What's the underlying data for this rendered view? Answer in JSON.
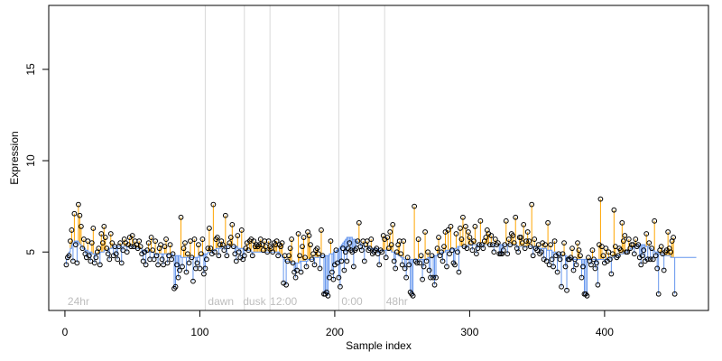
{
  "chart_data": {
    "type": "scatter",
    "xlabel": "Sample index",
    "ylabel": "Expression",
    "xlim": [
      -12,
      477
    ],
    "ylim": [
      1.8,
      18.5
    ],
    "x_ticks": [
      0,
      100,
      200,
      300,
      400
    ],
    "y_ticks": [
      5,
      10,
      15
    ],
    "baseline_line": {
      "color": "#6495ed",
      "description": "running baseline drawn as step line"
    },
    "stems": {
      "above_color": "#ffa500",
      "below_color": "#6495ed"
    },
    "markers": {
      "shape": "open-circle",
      "color": "#000000"
    },
    "annotation_lines": [
      104,
      133,
      152,
      203,
      237
    ],
    "annotations": [
      {
        "x": 2,
        "label": "24hr"
      },
      {
        "x": 106,
        "label": "dawn"
      },
      {
        "x": 132,
        "label": "dusk"
      },
      {
        "x": 152,
        "label": "12:00"
      },
      {
        "x": 205,
        "label": "0:00"
      },
      {
        "x": 238,
        "label": "48hr"
      }
    ],
    "baseline": [
      4.6,
      4.8,
      5.0,
      5.2,
      5.4,
      5.5,
      5.6,
      5.6,
      5.6,
      5.5,
      5.4,
      5.3,
      5.2,
      5.2,
      5.1,
      5.1,
      5.0,
      5.0,
      5.0,
      4.9,
      4.9,
      4.9,
      4.9,
      4.9,
      4.9,
      5.0,
      5.0,
      5.0,
      5.1,
      5.1,
      5.1,
      5.2,
      5.2,
      5.2,
      5.3,
      5.3,
      5.3,
      5.3,
      5.3,
      5.3,
      5.3,
      5.3,
      5.3,
      5.3,
      5.3,
      5.3,
      5.3,
      5.3,
      5.3,
      5.3,
      5.3,
      5.2,
      5.2,
      5.2,
      5.2,
      5.2,
      5.1,
      5.1,
      5.1,
      5.1,
      5.0,
      5.0,
      5.0,
      5.0,
      5.0,
      4.9,
      4.9,
      4.9,
      4.9,
      4.9,
      4.9,
      4.9,
      4.9,
      4.9,
      4.9,
      4.9,
      4.9,
      4.9,
      4.9,
      4.8,
      4.8,
      4.8,
      4.8,
      4.8,
      4.8,
      4.7,
      4.7,
      4.7,
      4.7,
      4.7,
      4.7,
      4.7,
      4.7,
      4.7,
      4.7,
      4.7,
      4.7,
      4.7,
      4.8,
      4.8,
      4.8,
      4.8,
      4.9,
      4.9,
      4.9,
      5.0,
      5.0,
      5.0,
      5.1,
      5.1,
      5.1,
      5.2,
      5.2,
      5.2,
      5.2,
      5.3,
      5.3,
      5.3,
      5.3,
      5.3,
      5.3,
      5.3,
      5.3,
      5.3,
      5.3,
      5.3,
      5.3,
      5.2,
      5.2,
      5.2,
      5.2,
      5.2,
      5.1,
      5.1,
      5.1,
      5.1,
      5.1,
      5.0,
      5.0,
      5.0,
      5.0,
      5.0,
      5.0,
      5.0,
      5.0,
      5.0,
      5.0,
      5.0,
      5.0,
      5.0,
      5.0,
      5.0,
      5.0,
      5.0,
      5.0,
      5.0,
      5.0,
      5.0,
      4.9,
      4.8,
      4.7,
      4.6,
      4.5,
      4.5,
      4.5,
      4.5,
      4.4,
      4.4,
      4.4,
      4.4,
      4.4,
      4.4,
      4.4,
      4.5,
      4.5,
      4.5,
      4.5,
      4.5,
      4.5,
      4.6,
      4.6,
      4.6,
      4.6,
      4.7,
      4.7,
      4.7,
      4.7,
      4.7,
      4.7,
      4.8,
      4.8,
      4.8,
      4.8,
      4.8,
      4.8,
      4.9,
      4.9,
      4.9,
      5.0,
      5.0,
      5.1,
      5.1,
      5.2,
      5.3,
      5.4,
      5.5,
      5.6,
      5.7,
      5.8,
      5.8,
      5.8,
      5.8,
      5.7,
      5.7,
      5.6,
      5.6,
      5.5,
      5.5,
      5.4,
      5.4,
      5.4,
      5.3,
      5.3,
      5.3,
      5.3,
      5.2,
      5.2,
      5.2,
      5.2,
      5.2,
      5.2,
      5.1,
      5.1,
      5.1,
      5.1,
      5.1,
      5.1,
      5.1,
      5.1,
      5.1,
      5.1,
      5.0,
      5.0,
      5.0,
      4.9,
      4.9,
      4.8,
      4.8,
      4.7,
      4.7,
      4.6,
      4.6,
      4.6,
      4.6,
      4.6,
      4.6,
      4.6,
      4.6,
      4.6,
      4.6,
      4.6,
      4.6,
      4.6,
      4.6,
      4.6,
      4.6,
      4.6,
      4.6,
      4.7,
      4.7,
      4.7,
      4.7,
      4.8,
      4.8,
      4.8,
      4.9,
      4.9,
      4.9,
      5.0,
      5.0,
      5.0,
      5.1,
      5.1,
      5.1,
      5.1,
      5.2,
      5.2,
      5.2,
      5.2,
      5.2,
      5.3,
      5.3,
      5.3,
      5.3,
      5.3,
      5.3,
      5.3,
      5.3,
      5.4,
      5.4,
      5.4,
      5.4,
      5.4,
      5.4,
      5.4,
      5.4,
      5.4,
      5.4,
      5.4,
      5.4,
      5.4,
      5.4,
      5.4,
      5.4,
      5.4,
      5.4,
      5.4,
      5.4,
      5.4,
      5.4,
      5.4,
      5.4,
      5.4,
      5.4,
      5.4,
      5.4,
      5.4,
      5.4,
      5.4,
      5.4,
      5.4,
      5.4,
      5.4,
      5.4,
      5.3,
      5.3,
      5.3,
      5.3,
      5.3,
      5.3,
      5.3,
      5.3,
      5.3,
      5.3,
      5.3,
      5.3,
      5.3,
      5.3,
      5.3,
      5.3,
      5.2,
      5.2,
      5.2,
      5.2,
      5.2,
      5.2,
      5.1,
      5.1,
      5.1,
      5.1,
      5.0,
      5.0,
      5.0,
      4.9,
      4.9,
      4.9,
      4.9,
      4.8,
      4.8,
      4.8,
      4.8,
      4.7,
      4.7,
      4.7,
      4.7,
      4.7,
      4.6,
      4.6,
      4.6,
      4.6,
      4.6,
      4.6,
      4.6,
      4.6,
      4.6,
      4.6,
      4.6,
      4.6,
      4.6,
      4.6,
      4.6,
      4.6,
      4.6,
      4.6,
      4.6,
      4.6,
      4.6,
      4.6,
      4.6,
      4.6,
      4.6,
      4.7,
      4.7,
      4.7,
      4.7,
      4.7,
      4.8,
      4.8,
      4.8,
      4.8,
      4.9,
      4.9,
      4.9,
      5.0,
      5.0,
      5.0,
      5.1,
      5.1,
      5.2,
      5.2,
      5.3,
      5.3,
      5.3,
      5.4,
      5.4,
      5.4,
      5.4,
      5.4,
      5.4,
      5.3,
      5.3,
      5.3,
      5.2,
      5.2,
      5.1,
      5.1,
      5.0,
      5.0,
      5.0,
      4.9,
      4.9,
      4.9,
      4.8,
      4.8,
      4.8,
      4.8,
      4.8,
      4.8,
      4.7,
      4.7,
      4.7,
      4.7,
      4.7,
      4.7,
      4.7,
      4.7,
      4.7,
      4.7,
      4.7,
      4.7,
      4.7,
      4.7,
      4.7,
      4.7,
      4.7,
      4.7,
      4.7,
      4.7
    ],
    "values": [
      4.3,
      4.7,
      4.8,
      5.6,
      6.2,
      4.5,
      7.1,
      5.4,
      4.4,
      7.6,
      7.0,
      6.4,
      5.2,
      5.7,
      4.9,
      4.7,
      5.6,
      4.8,
      4.5,
      5.5,
      6.3,
      4.4,
      4.7,
      5.0,
      5.2,
      4.3,
      6.0,
      5.5,
      6.4,
      5.8,
      5.2,
      4.9,
      4.6,
      6.0,
      5.5,
      4.8,
      5.3,
      4.9,
      4.6,
      5.3,
      5.5,
      4.4,
      5.1,
      5.7,
      5.5,
      5.0,
      5.4,
      5.8,
      5.3,
      5.9,
      5.3,
      5.6,
      5.4,
      5.2,
      5.6,
      5.3,
      4.9,
      4.5,
      5.0,
      4.3,
      5.1,
      5.5,
      4.6,
      5.8,
      5.1,
      4.6,
      5.6,
      4.8,
      4.3,
      5.2,
      5.4,
      4.6,
      4.3,
      5.3,
      5.7,
      4.4,
      4.8,
      5.4,
      4.6,
      4.9,
      3.0,
      3.1,
      4.3,
      3.6,
      4.0,
      6.9,
      4.2,
      5.2,
      5.5,
      3.9,
      4.9,
      4.4,
      5.6,
      4.7,
      3.4,
      5.7,
      4.1,
      4.4,
      5.4,
      4.1,
      4.9,
      5.7,
      3.8,
      4.1,
      4.6,
      5.2,
      6.3,
      5.2,
      4.9,
      7.6,
      5.0,
      5.7,
      5.8,
      4.8,
      5.4,
      5.6,
      5.4,
      5.1,
      7.0,
      4.8,
      5.3,
      5.5,
      5.8,
      6.5,
      5.3,
      4.9,
      4.5,
      5.9,
      5.0,
      4.7,
      6.2,
      4.6,
      4.8,
      5.2,
      5.5,
      5.1,
      5.6,
      5.7,
      4.8,
      5.6,
      5.3,
      5.4,
      5.3,
      5.4,
      5.7,
      5.4,
      5.1,
      5.6,
      5.3,
      5.0,
      5.6,
      5.3,
      5.2,
      5.0,
      5.5,
      5.4,
      5.6,
      4.8,
      5.4,
      5.3,
      5.5,
      3.3,
      4.8,
      3.2,
      4.5,
      4.8,
      5.2,
      5.7,
      4.4,
      3.9,
      3.6,
      4.0,
      6.0,
      4.8,
      3.9,
      5.3,
      5.8,
      4.7,
      4.2,
      6.1,
      5.9,
      5.4,
      4.6,
      4.9,
      4.3,
      5.1,
      5.2,
      4.9,
      4.1,
      6.2,
      4.8,
      2.7,
      2.7,
      2.8,
      2.6,
      3.6,
      5.6,
      3.9,
      3.5,
      4.3,
      5.1,
      4.4,
      3.6,
      3.1,
      4.5,
      5.2,
      4.0,
      5.0,
      4.5,
      5.2,
      5.5,
      5.1,
      5.0,
      4.2,
      5.1,
      5.2,
      5.6,
      6.6,
      5.3,
      5.1,
      5.6,
      4.5,
      5.4,
      5.6,
      5.1,
      5.2,
      5.7,
      4.9,
      5.0,
      5.1,
      5.2,
      4.9,
      4.3,
      5.1,
      5.0,
      5.9,
      5.7,
      4.7,
      5.8,
      5.2,
      6.1,
      5.4,
      6.5,
      4.5,
      4.1,
      5.0,
      5.4,
      5.6,
      4.9,
      4.3,
      5.6,
      4.1,
      3.6,
      4.7,
      4.3,
      2.8,
      2.7,
      2.6,
      7.5,
      4.5,
      4.4,
      5.7,
      4.4,
      4.8,
      3.5,
      4.2,
      6.1,
      4.5,
      5.0,
      4.0,
      3.6,
      4.8,
      3.6,
      3.2,
      3.6,
      5.2,
      5.8,
      4.8,
      5.0,
      4.5,
      5.3,
      6.1,
      4.2,
      6.2,
      4.9,
      6.4,
      5.1,
      4.4,
      4.3,
      6.0,
      5.0,
      3.9,
      6.3,
      5.7,
      6.9,
      5.3,
      6.4,
      5.2,
      6.1,
      5.8,
      5.5,
      5.1,
      5.6,
      6.4,
      4.9,
      5.2,
      5.4,
      6.7,
      5.4,
      5.2,
      5.6,
      5.8,
      6.2,
      6.0,
      5.4,
      5.9,
      5.4,
      5.0,
      5.7,
      5.4,
      5.5,
      4.9,
      4.9,
      4.9,
      5.1,
      5.4,
      6.7,
      4.9,
      5.7,
      5.4,
      6.0,
      5.9,
      5.5,
      6.9,
      5.2,
      5.0,
      5.8,
      5.8,
      5.5,
      6.5,
      5.2,
      5.6,
      6.1,
      5.6,
      5.3,
      7.6,
      4.8,
      5.7,
      5.2,
      5.1,
      5.4,
      4.9,
      5.0,
      5.5,
      4.6,
      5.4,
      4.5,
      6.6,
      4.3,
      5.4,
      4.6,
      4.2,
      5.6,
      4.8,
      3.9,
      4.9,
      4.6,
      3.1,
      4.9,
      5.5,
      4.2,
      2.9,
      4.6,
      4.6,
      4.7,
      5.2,
      4.0,
      4.6,
      4.3,
      5.5,
      5.1,
      4.8,
      3.6,
      4.2,
      2.7,
      2.7,
      2.6,
      4.7,
      4.5,
      4.3,
      5.1,
      4.6,
      4.1,
      4.4,
      3.2,
      5.4,
      7.9,
      5.3,
      4.8,
      4.4,
      5.2,
      4.5,
      5.0,
      4.6,
      3.8,
      4.9,
      7.3,
      5.3,
      4.7,
      4.8,
      5.2,
      5.1,
      6.6,
      5.6,
      5.9,
      5.0,
      5.0,
      5.7,
      5.2,
      5.4,
      5.4,
      4.9,
      5.7,
      5.3,
      5.4,
      4.7,
      4.3,
      4.8,
      5.1,
      4.5,
      6.0,
      4.6,
      5.5,
      4.6,
      5.2,
      4.6,
      6.7,
      4.8,
      4.1,
      2.7,
      5.1,
      5.3,
      4.9,
      4.0,
      5.0,
      5.1,
      6.1,
      5.2,
      5.0,
      5.6,
      5.8,
      2.7
    ]
  }
}
